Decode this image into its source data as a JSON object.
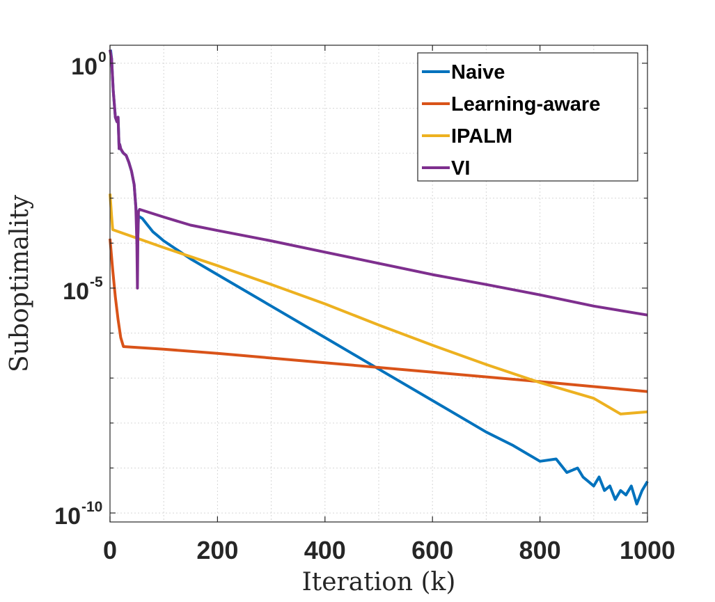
{
  "chart_data": {
    "type": "line",
    "title": "",
    "xlabel": "Iteration (k)",
    "ylabel": "Suboptimality",
    "xlim": [
      0,
      1000
    ],
    "ylim_log10": [
      -10.2,
      0.4
    ],
    "yscale": "log",
    "grid": true,
    "legend_position": "top-right",
    "x_ticks": [
      {
        "value": 0,
        "label": "0"
      },
      {
        "value": 200,
        "label": "200"
      },
      {
        "value": 400,
        "label": "400"
      },
      {
        "value": 600,
        "label": "600"
      },
      {
        "value": 800,
        "label": "800"
      },
      {
        "value": 1000,
        "label": "1000"
      }
    ],
    "y_ticks": [
      {
        "exp": 0,
        "base": "10",
        "sup": "0"
      },
      {
        "exp": -5,
        "base": "10",
        "sup": "-5"
      },
      {
        "exp": -10,
        "base": "10",
        "sup": "-10"
      }
    ],
    "series": [
      {
        "name": "Naive",
        "color": "#0072BD",
        "x": [
          1,
          3,
          6,
          10,
          13,
          15,
          17,
          18,
          20,
          22,
          25,
          30,
          35,
          40,
          45,
          50,
          52,
          53,
          60,
          70,
          80,
          90,
          100,
          150,
          200,
          300,
          400,
          500,
          600,
          700,
          750,
          800,
          830,
          850,
          870,
          880,
          890,
          900,
          910,
          920,
          930,
          940,
          950,
          960,
          970,
          980,
          990,
          1000
        ],
        "log10_y": [
          0.3,
          0.1,
          -0.6,
          -1.2,
          -1.3,
          -1.2,
          -1.9,
          -1.8,
          -1.9,
          -1.95,
          -2.0,
          -2.05,
          -2.2,
          -2.4,
          -2.7,
          -3.5,
          -3.8,
          -3.4,
          -3.45,
          -3.6,
          -3.75,
          -3.85,
          -3.95,
          -4.35,
          -4.7,
          -5.4,
          -6.1,
          -6.8,
          -7.5,
          -8.2,
          -8.5,
          -8.85,
          -8.8,
          -9.1,
          -9.0,
          -9.2,
          -9.3,
          -9.4,
          -9.2,
          -9.5,
          -9.4,
          -9.7,
          -9.5,
          -9.6,
          -9.4,
          -9.8,
          -9.5,
          -9.3
        ]
      },
      {
        "name": "Learning-aware",
        "color": "#D95319",
        "x": [
          0,
          5,
          10,
          15,
          20,
          25,
          100,
          200,
          400,
          600,
          800,
          1000
        ],
        "log10_y": [
          -3.9,
          -4.6,
          -5.2,
          -5.7,
          -6.1,
          -6.3,
          -6.36,
          -6.45,
          -6.66,
          -6.87,
          -7.08,
          -7.3
        ]
      },
      {
        "name": "IPALM",
        "color": "#EDB120",
        "x": [
          0,
          3,
          5,
          100,
          200,
          300,
          400,
          500,
          600,
          700,
          800,
          900,
          950,
          1000
        ],
        "log10_y": [
          -2.9,
          -3.4,
          -3.7,
          -4.1,
          -4.5,
          -4.92,
          -5.35,
          -5.82,
          -6.27,
          -6.7,
          -7.1,
          -7.45,
          -7.8,
          -7.75
        ]
      },
      {
        "name": "VI",
        "color": "#7E2F8E",
        "x": [
          0,
          3,
          6,
          10,
          13,
          15,
          17,
          18,
          20,
          25,
          30,
          35,
          40,
          45,
          48,
          50,
          51,
          52,
          53,
          55,
          100,
          150,
          200,
          300,
          400,
          500,
          600,
          700,
          800,
          900,
          1000
        ],
        "log10_y": [
          0.3,
          0.1,
          -0.6,
          -1.2,
          -1.3,
          -1.2,
          -1.9,
          -1.8,
          -1.9,
          -2.0,
          -2.05,
          -2.2,
          -2.4,
          -2.7,
          -3.2,
          -4.0,
          -5.0,
          -3.8,
          -3.3,
          -3.25,
          -3.42,
          -3.6,
          -3.72,
          -3.95,
          -4.2,
          -4.45,
          -4.7,
          -4.92,
          -5.15,
          -5.4,
          -5.6
        ]
      }
    ]
  }
}
